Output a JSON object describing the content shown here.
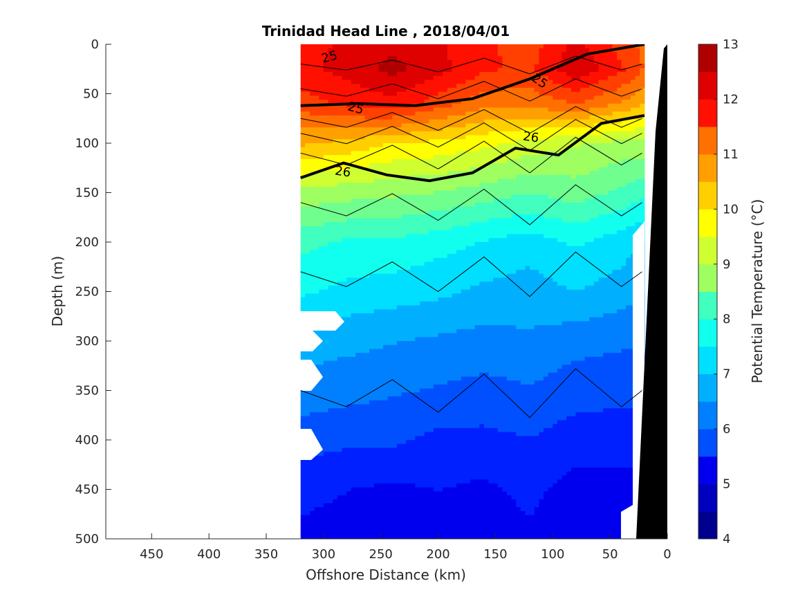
{
  "chart_data": {
    "type": "heatmap",
    "title": "Trinidad Head Line , 2018/04/01",
    "xlabel": "Offshore Distance (km)",
    "ylabel": "Depth (m)",
    "xlim": [
      490,
      0
    ],
    "ylim": [
      0,
      500
    ],
    "x_reversed": true,
    "y_reversed": true,
    "xticks": [
      450,
      400,
      350,
      300,
      250,
      200,
      150,
      100,
      50,
      0
    ],
    "yticks": [
      0,
      50,
      100,
      150,
      200,
      250,
      300,
      350,
      400,
      450,
      500
    ],
    "grid": false,
    "data_extent_km": [
      20,
      320
    ],
    "colorbar": {
      "label": "Potential Temperature (°C)",
      "ticks": [
        4,
        5,
        6,
        7,
        8,
        9,
        10,
        11,
        12,
        13
      ],
      "range": [
        4,
        13
      ],
      "levels": [
        4,
        4.5,
        5,
        5.5,
        6,
        6.5,
        7,
        7.5,
        8,
        8.5,
        9,
        9.5,
        10,
        10.5,
        11,
        11.5,
        12,
        12.5,
        13
      ],
      "colors": [
        "#00008f",
        "#0000bf",
        "#0000ef",
        "#0020ff",
        "#0050ff",
        "#0080ff",
        "#00b0ff",
        "#00dfff",
        "#10ffef",
        "#40ffbf",
        "#70ff8f",
        "#9fff60",
        "#cfff30",
        "#ffff00",
        "#ffcf00",
        "#ff9f00",
        "#ff7000",
        "#ff4000",
        "#ff1000",
        "#df0000",
        "#af0000"
      ]
    },
    "temperature_profile_by_distance": {
      "x_km": [
        320,
        280,
        240,
        200,
        160,
        120,
        80,
        40,
        22
      ],
      "depth_m": [
        0,
        25,
        60,
        100,
        150,
        200,
        250,
        300,
        350,
        400,
        450,
        500
      ],
      "values": [
        [
          12.0,
          12.2,
          12.5,
          12.2,
          11.8,
          11.5,
          12.3,
          11.5,
          11.2
        ],
        [
          12.0,
          12.3,
          12.7,
          12.3,
          11.8,
          11.6,
          12.5,
          11.8,
          11.3
        ],
        [
          11.5,
          11.8,
          12.0,
          11.5,
          11.0,
          11.0,
          11.3,
          10.8,
          10.5
        ],
        [
          10.5,
          10.3,
          10.0,
          9.9,
          9.7,
          9.4,
          9.2,
          9.0,
          9.0
        ],
        [
          9.0,
          8.9,
          8.8,
          8.7,
          8.5,
          8.3,
          8.5,
          8.2,
          8.0
        ],
        [
          8.0,
          7.8,
          7.8,
          7.6,
          7.4,
          7.2,
          7.5,
          7.2,
          7.0
        ],
        [
          7.5,
          7.3,
          7.2,
          7.1,
          6.9,
          6.8,
          7.0,
          6.8,
          6.6
        ],
        [
          6.8,
          6.7,
          6.6,
          6.5,
          6.4,
          6.5,
          6.3,
          6.2,
          6.2
        ],
        [
          6.4,
          6.3,
          6.2,
          6.1,
          6.0,
          6.1,
          5.9,
          5.9,
          5.9
        ],
        [
          5.9,
          5.8,
          5.8,
          5.6,
          5.6,
          5.7,
          5.5,
          5.4,
          5.4
        ],
        [
          5.4,
          5.3,
          5.2,
          5.3,
          5.2,
          5.4,
          5.1,
          5.2,
          5.2
        ],
        [
          5.2,
          5.1,
          5.0,
          5.1,
          5.0,
          5.2,
          5.0,
          5.0,
          5.0
        ]
      ]
    },
    "density_contours": [
      {
        "label": "25",
        "depths_m": [
          62,
          60,
          62,
          55,
          35,
          10,
          0
        ]
      },
      {
        "label": "26",
        "depths_m": [
          135,
          120,
          132,
          138,
          130,
          105,
          112,
          80,
          72
        ]
      }
    ]
  }
}
